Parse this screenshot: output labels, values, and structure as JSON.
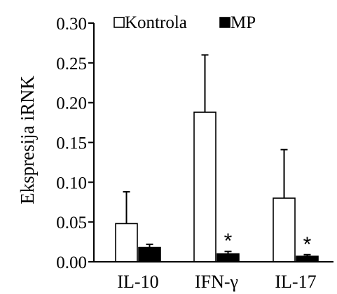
{
  "chart_data": {
    "type": "bar",
    "ylabel": "Ekspresija iRNK",
    "ylim": [
      0,
      0.3
    ],
    "yticks": [
      "0.00",
      "0.05",
      "0.10",
      "0.15",
      "0.20",
      "0.25",
      "0.30"
    ],
    "categories": [
      "IL-10",
      "IFN-γ",
      "IL-17"
    ],
    "series": [
      {
        "name": "Kontrola",
        "values": [
          0.048,
          0.188,
          0.08
        ],
        "errors": [
          0.04,
          0.072,
          0.061
        ],
        "color": "#ffffff"
      },
      {
        "name": "MP",
        "values": [
          0.018,
          0.01,
          0.007
        ],
        "errors": [
          0.004,
          0.003,
          0.002
        ],
        "color": "#000000"
      }
    ],
    "significance": [
      "",
      "*",
      "*"
    ],
    "legend_position": "top",
    "grid": false
  }
}
